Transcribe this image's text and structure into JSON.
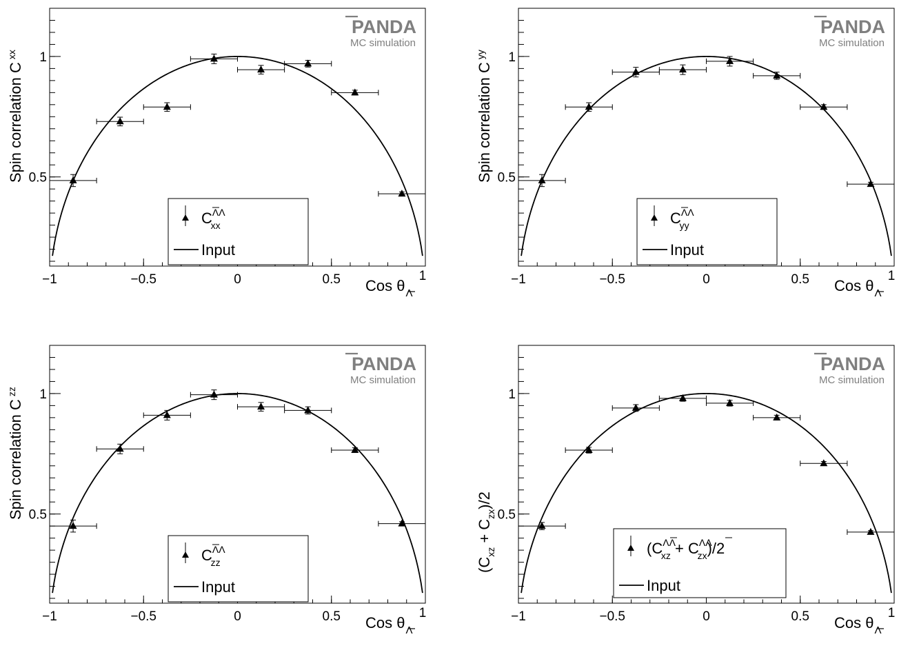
{
  "chart_data": [
    {
      "type": "scatter",
      "xlabel": "Cos θ",
      "xlabel_sub": "Λ",
      "xlabel_sub_overline": true,
      "ylabel": "Spin correlation C",
      "ylabel_sub": "xx",
      "xlim": [
        -1,
        1
      ],
      "ylim": [
        0.13,
        1.2
      ],
      "xticks": [
        "−1",
        "−0.5",
        "0",
        "0.5",
        "1"
      ],
      "yticks": [
        "0.5",
        "1"
      ],
      "watermark": {
        "brand": "PANDA",
        "brand_overline": "P",
        "subtitle": "MC simulation"
      },
      "legend": {
        "symbol": "C",
        "superscript": "ΛΛ",
        "subscript": "xx",
        "curve": "Input",
        "placement": "bottom-center"
      },
      "series": [
        {
          "kind": "points",
          "x": [
            -0.875,
            -0.625,
            -0.375,
            -0.125,
            0.125,
            0.375,
            0.625,
            0.875
          ],
          "xerr": [
            0.125,
            0.125,
            0.125,
            0.125,
            0.125,
            0.125,
            0.125,
            0.125
          ],
          "y": [
            0.485,
            0.73,
            0.79,
            0.99,
            0.945,
            0.97,
            0.85,
            0.43
          ],
          "yerr": [
            0.025,
            0.018,
            0.018,
            0.02,
            0.018,
            0.014,
            0.01,
            0.008
          ]
        },
        {
          "kind": "curve",
          "formula": "sqrt(1 - x^2)"
        }
      ]
    },
    {
      "type": "scatter",
      "xlabel": "Cos θ",
      "xlabel_sub": "Λ",
      "xlabel_sub_overline": true,
      "ylabel": "Spin correlation C",
      "ylabel_sub": "yy",
      "xlim": [
        -1,
        1
      ],
      "ylim": [
        0.13,
        1.2
      ],
      "xticks": [
        "−1",
        "−0.5",
        "0",
        "0.5",
        "1"
      ],
      "yticks": [
        "0.5",
        "1"
      ],
      "watermark": {
        "brand": "PANDA",
        "brand_overline": "P",
        "subtitle": "MC simulation"
      },
      "legend": {
        "symbol": "C",
        "superscript": "ΛΛ",
        "subscript": "yy",
        "curve": "Input",
        "placement": "bottom-center"
      },
      "series": [
        {
          "kind": "points",
          "x": [
            -0.875,
            -0.625,
            -0.375,
            -0.125,
            0.125,
            0.375,
            0.625,
            0.875
          ],
          "xerr": [
            0.125,
            0.125,
            0.125,
            0.125,
            0.125,
            0.125,
            0.125,
            0.125
          ],
          "y": [
            0.485,
            0.79,
            0.935,
            0.945,
            0.98,
            0.92,
            0.79,
            0.47
          ],
          "yerr": [
            0.025,
            0.018,
            0.02,
            0.02,
            0.02,
            0.015,
            0.01,
            0.008
          ]
        },
        {
          "kind": "curve",
          "formula": "sqrt(1 - x^2)"
        }
      ]
    },
    {
      "type": "scatter",
      "xlabel": "Cos θ",
      "xlabel_sub": "Λ",
      "xlabel_sub_overline": true,
      "ylabel": "Spin correlation C",
      "ylabel_sub": "zz",
      "xlim": [
        -1,
        1
      ],
      "ylim": [
        0.13,
        1.2
      ],
      "xticks": [
        "−1",
        "−0.5",
        "0",
        "0.5",
        "1"
      ],
      "yticks": [
        "0.5",
        "1"
      ],
      "watermark": {
        "brand": "PANDA",
        "brand_overline": "P",
        "subtitle": "MC simulation"
      },
      "legend": {
        "symbol": "C",
        "superscript": "ΛΛ",
        "subscript": "zz",
        "curve": "Input",
        "placement": "bottom-center"
      },
      "series": [
        {
          "kind": "points",
          "x": [
            -0.875,
            -0.625,
            -0.375,
            -0.125,
            0.125,
            0.375,
            0.625,
            0.875
          ],
          "xerr": [
            0.125,
            0.125,
            0.125,
            0.125,
            0.125,
            0.125,
            0.125,
            0.125
          ],
          "y": [
            0.45,
            0.77,
            0.91,
            0.995,
            0.945,
            0.93,
            0.765,
            0.46
          ],
          "yerr": [
            0.025,
            0.02,
            0.02,
            0.02,
            0.018,
            0.015,
            0.01,
            0.008
          ]
        },
        {
          "kind": "curve",
          "formula": "sqrt(1 - x^2)"
        }
      ]
    },
    {
      "type": "scatter",
      "xlabel": "Cos θ",
      "xlabel_sub": "Λ",
      "xlabel_sub_overline": true,
      "ylabel": "(C  + C )/2",
      "ylabel_parts": {
        "open": "(C",
        "sub1": "xz",
        "mid": " + C",
        "sub2": "zx",
        "close": ")/2"
      },
      "xlim": [
        -1,
        1
      ],
      "ylim": [
        0.13,
        1.2
      ],
      "xticks": [
        "−1",
        "−0.5",
        "0",
        "0.5",
        "1"
      ],
      "yticks": [
        "0.5",
        "1"
      ],
      "watermark": {
        "brand": "PANDA",
        "brand_overline": "P",
        "subtitle": "MC simulation"
      },
      "legend": {
        "symbol": "C",
        "superscript": "ΛΛ",
        "subscript": "xz",
        "subscript2": "zx",
        "open": "(",
        "plus": " + ",
        "close": ")/2",
        "curve": "Input",
        "placement": "bottom-center"
      },
      "series": [
        {
          "kind": "points",
          "x": [
            -0.875,
            -0.625,
            -0.375,
            -0.125,
            0.125,
            0.375,
            0.625,
            0.875
          ],
          "xerr": [
            0.125,
            0.125,
            0.125,
            0.125,
            0.125,
            0.125,
            0.125,
            0.125
          ],
          "y": [
            0.45,
            0.765,
            0.94,
            0.98,
            0.96,
            0.9,
            0.71,
            0.425
          ],
          "yerr": [
            0.015,
            0.012,
            0.014,
            0.012,
            0.012,
            0.01,
            0.008,
            0.006
          ]
        },
        {
          "kind": "curve",
          "formula": "sqrt(1 - x^2)"
        }
      ]
    }
  ]
}
